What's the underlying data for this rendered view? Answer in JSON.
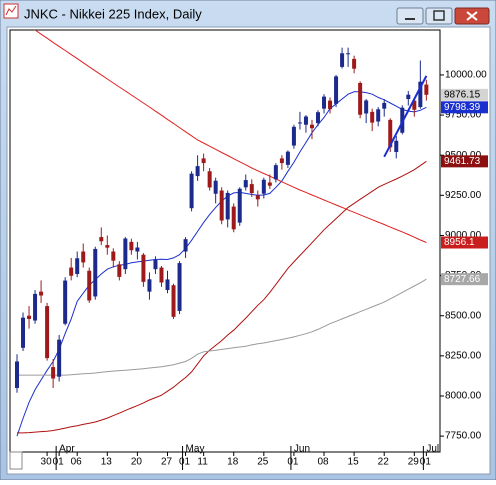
{
  "chart_data": {
    "type": "candlestick",
    "title": "JNKC - Nikkei 225 Index, Daily",
    "categories": [
      null,
      null,
      null,
      null,
      null,
      "30",
      null,
      "01",
      null,
      null,
      "06",
      null,
      null,
      null,
      null,
      "13",
      null,
      null,
      null,
      null,
      "20",
      null,
      null,
      null,
      null,
      "27",
      null,
      null,
      "01",
      null,
      null,
      "11",
      null,
      null,
      null,
      null,
      "18",
      null,
      null,
      null,
      null,
      "25",
      null,
      null,
      null,
      null,
      "01",
      null,
      null,
      null,
      null,
      "08",
      null,
      null,
      null,
      null,
      "15",
      null,
      null,
      null,
      null,
      "22",
      null,
      null,
      null,
      null,
      "29",
      null,
      "01"
    ],
    "months": [
      null,
      null,
      null,
      null,
      null,
      null,
      null,
      "Apr",
      null,
      null,
      null,
      null,
      null,
      null,
      null,
      null,
      null,
      null,
      null,
      null,
      null,
      null,
      null,
      null,
      null,
      null,
      null,
      null,
      "May",
      null,
      null,
      null,
      null,
      null,
      null,
      null,
      null,
      null,
      null,
      null,
      null,
      null,
      null,
      null,
      null,
      null,
      "Jun",
      null,
      null,
      null,
      null,
      null,
      null,
      null,
      null,
      null,
      null,
      null,
      null,
      null,
      null,
      null,
      null,
      null,
      null,
      null,
      null,
      null,
      "Jul"
    ],
    "open": [
      8050,
      8300,
      8500,
      8470,
      8650,
      8560,
      8180,
      8120,
      8450,
      8800,
      8760,
      8900,
      8780,
      8620,
      8990,
      8940,
      8900,
      8820,
      8790,
      8960,
      8900,
      8880,
      8650,
      8790,
      8800,
      8660,
      8690,
      8530,
      8900,
      9170,
      9370,
      9480,
      9400,
      9260,
      9280,
      9100,
      9180,
      9080,
      9300,
      9320,
      9250,
      9260,
      9330,
      9350,
      9480,
      9440,
      9560,
      9700,
      9690,
      9690,
      9700,
      9790,
      9840,
      9820,
      10050,
      10130,
      10100,
      9950,
      9760,
      9770,
      9710,
      9790,
      9720,
      9520,
      9640,
      9850,
      9840,
      9800,
      9940
    ],
    "high": [
      8260,
      8520,
      8560,
      8660,
      8720,
      8580,
      8230,
      8380,
      8740,
      8860,
      8900,
      8950,
      8800,
      8930,
      9050,
      9000,
      8920,
      8840,
      8990,
      8980,
      8960,
      8890,
      8770,
      8870,
      8810,
      8780,
      8700,
      8840,
      8990,
      9400,
      9500,
      9510,
      9420,
      9360,
      9300,
      9280,
      9200,
      9300,
      9380,
      9350,
      9280,
      9360,
      9380,
      9450,
      9500,
      9530,
      9690,
      9770,
      9750,
      9720,
      9780,
      9880,
      9860,
      10000,
      10170,
      10170,
      10120,
      9960,
      9850,
      9790,
      9800,
      9850,
      9730,
      9620,
      9810,
      9900,
      9850,
      10090,
      9970
    ],
    "low": [
      8020,
      8280,
      8420,
      8450,
      8580,
      8220,
      8050,
      8090,
      8440,
      8720,
      8740,
      8800,
      8580,
      8600,
      8940,
      8880,
      8800,
      8720,
      8760,
      8880,
      8850,
      8680,
      8600,
      8760,
      8680,
      8640,
      8480,
      8510,
      8860,
      9150,
      9340,
      9400,
      9280,
      9200,
      9070,
      9050,
      9020,
      9060,
      9280,
      9240,
      9180,
      9230,
      9290,
      9330,
      9410,
      9420,
      9540,
      9660,
      9640,
      9600,
      9680,
      9760,
      9760,
      9800,
      10040,
      10050,
      10010,
      9730,
      9700,
      9650,
      9680,
      9740,
      9520,
      9480,
      9630,
      9810,
      9740,
      9790,
      9840
    ],
    "close": [
      8215,
      8488,
      8480,
      8636,
      8626,
      8236,
      8109,
      8351,
      8719,
      8749,
      8858,
      8832,
      8595,
      8916,
      8964,
      8924,
      8843,
      8742,
      8981,
      8908,
      8925,
      8711,
      8727,
      8847,
      8707,
      8726,
      8493,
      8828,
      8977,
      9385,
      9432,
      9451,
      9299,
      9341,
      9093,
      9265,
      9038,
      9291,
      9345,
      9264,
      9225,
      9347,
      9310,
      9438,
      9451,
      9522,
      9677,
      9704,
      9741,
      9668,
      9768,
      9865,
      9787,
      9991,
      10135,
      10135,
      10039,
      9752,
      9841,
      9703,
      9786,
      9826,
      9549,
      9590,
      9796,
      9877,
      9783,
      9958,
      9876.15
    ],
    "up_color": "#1c2a8c",
    "down_color": "#9e1a1a",
    "close_label_color": "#d4d4d4",
    "lines": [
      {
        "color": "#1a2fd0",
        "label_color": "#1a2fd0",
        "values": [
          7750,
          7860,
          7960,
          8040,
          8100,
          8160,
          8215,
          8290,
          8390,
          8480,
          8590,
          8640,
          8690,
          8725,
          8760,
          8790,
          8805,
          8815,
          8820,
          8830,
          8835,
          8840,
          8845,
          8850,
          8852,
          8850,
          8860,
          8880,
          8920,
          8970,
          9025,
          9080,
          9130,
          9175,
          9215,
          9245,
          9265,
          9268,
          9262,
          9255,
          9250,
          9252,
          9262,
          9300,
          9340,
          9400,
          9455,
          9520,
          9580,
          9640,
          9690,
          9735,
          9790,
          9820,
          9850,
          9880,
          9895,
          9895,
          9890,
          9880,
          9860,
          9845,
          9825,
          9805,
          9785,
          9775,
          9770,
          9780,
          9798.39
        ]
      },
      {
        "color": "#e02020",
        "label_color": "#c81e1e",
        "values": [
          10358,
          10332,
          10306,
          10280,
          10254,
          10229,
          10203,
          10178,
          10152,
          10127,
          10102,
          10076,
          10051,
          10025,
          10000,
          9975,
          9950,
          9925,
          9900,
          9875,
          9850,
          9825,
          9800,
          9774,
          9749,
          9723,
          9698,
          9672,
          9646,
          9621,
          9595,
          9576,
          9556,
          9537,
          9517,
          9498,
          9478,
          9459,
          9440,
          9420,
          9403,
          9386,
          9369,
          9352,
          9334,
          9317,
          9300,
          9283,
          9268,
          9252,
          9237,
          9221,
          9206,
          9190,
          9175,
          9159,
          9144,
          9129,
          9113,
          9098,
          9083,
          9068,
          9052,
          9037,
          9022,
          9006,
          8989,
          8972,
          8956.1
        ]
      },
      {
        "color": "#b01010",
        "label_color": "#8c1010",
        "values": [
          7770,
          7770,
          7772,
          7775,
          7778,
          7780,
          7785,
          7792,
          7800,
          7808,
          7815,
          7823,
          7830,
          7838,
          7850,
          7862,
          7878,
          7893,
          7910,
          7925,
          7940,
          7957,
          7975,
          7990,
          8005,
          8030,
          8055,
          8085,
          8115,
          8150,
          8200,
          8250,
          8285,
          8315,
          8345,
          8380,
          8410,
          8448,
          8485,
          8525,
          8565,
          8600,
          8645,
          8695,
          8745,
          8795,
          8835,
          8875,
          8915,
          8955,
          8995,
          9035,
          9070,
          9105,
          9140,
          9175,
          9200,
          9225,
          9250,
          9275,
          9300,
          9318,
          9335,
          9352,
          9370,
          9390,
          9410,
          9435,
          9461.73
        ]
      },
      {
        "color": "#9a9a9a",
        "label_color": "#a8a8a8",
        "values": [
          8130,
          8130,
          8130,
          8130,
          8130,
          8130,
          8130,
          8130,
          8130,
          8132,
          8135,
          8138,
          8140,
          8143,
          8148,
          8152,
          8155,
          8158,
          8160,
          8163,
          8166,
          8170,
          8174,
          8178,
          8182,
          8188,
          8195,
          8205,
          8215,
          8235,
          8260,
          8275,
          8280,
          8285,
          8290,
          8295,
          8300,
          8305,
          8310,
          8318,
          8325,
          8330,
          8338,
          8345,
          8352,
          8360,
          8368,
          8378,
          8388,
          8400,
          8415,
          8432,
          8450,
          8465,
          8480,
          8495,
          8510,
          8525,
          8540,
          8555,
          8570,
          8585,
          8605,
          8625,
          8645,
          8665,
          8685,
          8705,
          8727.66
        ]
      }
    ],
    "trendline": {
      "color": "#1a2fd0",
      "values": [
        null,
        null,
        null,
        null,
        null,
        null,
        null,
        null,
        null,
        null,
        null,
        null,
        null,
        null,
        null,
        null,
        null,
        null,
        null,
        null,
        null,
        null,
        null,
        null,
        null,
        null,
        null,
        null,
        null,
        null,
        null,
        null,
        null,
        null,
        null,
        null,
        null,
        null,
        null,
        null,
        null,
        null,
        null,
        null,
        null,
        null,
        null,
        null,
        null,
        null,
        null,
        null,
        null,
        null,
        null,
        null,
        null,
        null,
        null,
        null,
        null,
        9490,
        9562,
        9634,
        9706,
        9778,
        9850,
        9922,
        9994
      ]
    },
    "ylim": [
      7651,
      10280
    ],
    "yticks": [
      {
        "value": 7750,
        "label": "7750.00"
      },
      {
        "value": 8000,
        "label": "8000.00"
      },
      {
        "value": 8250,
        "label": "8250.00"
      },
      {
        "value": 8500,
        "label": "8500.00"
      },
      {
        "value": 8750,
        "label": "8750.00"
      },
      {
        "value": 9000,
        "label": "9000.00"
      },
      {
        "value": 9250,
        "label": "9250.00"
      },
      {
        "value": 9500,
        "label": "9500.00"
      },
      {
        "value": 9750,
        "label": "9750.00"
      },
      {
        "value": 10000,
        "label": "10000.00"
      }
    ]
  }
}
